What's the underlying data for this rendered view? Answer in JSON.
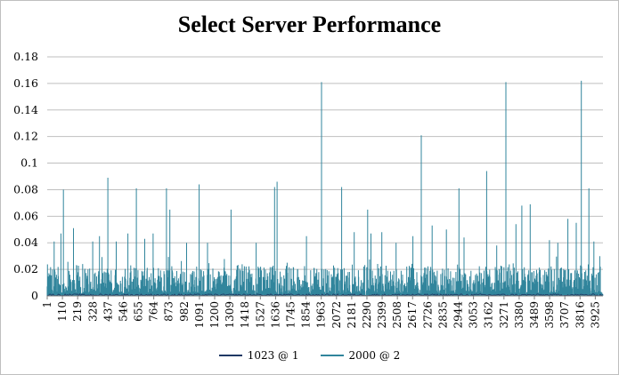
{
  "chart_data": {
    "type": "line",
    "title": "Select Server Performance",
    "xlabel": "",
    "ylabel": "",
    "ylim": [
      0,
      0.18
    ],
    "yticks": [
      "0",
      "0.02",
      "0.04",
      "0.06",
      "0.08",
      "0.1",
      "0.12",
      "0.14",
      "0.16",
      "0.18"
    ],
    "x_range": [
      1,
      3980
    ],
    "xticks": [
      "1",
      "110",
      "219",
      "328",
      "437",
      "546",
      "655",
      "764",
      "873",
      "982",
      "1091",
      "1200",
      "1309",
      "1418",
      "1527",
      "1636",
      "1745",
      "1854",
      "1963",
      "2072",
      "2181",
      "2290",
      "2399",
      "2508",
      "2617",
      "2726",
      "2835",
      "2944",
      "3053",
      "3162",
      "3271",
      "3380",
      "3489",
      "3598",
      "3707",
      "3816",
      "3925"
    ],
    "grid": true,
    "legend_position": "bottom",
    "series": [
      {
        "name": "1023 @ 1",
        "color": "#1f3864",
        "values_summary": "near-zero baseline, mostly hidden beneath second series"
      },
      {
        "name": "2000 @ 2",
        "color": "#31859c",
        "baseline_range": [
          0,
          0.02
        ],
        "spikes": [
          {
            "x": 55,
            "y": 0.041
          },
          {
            "x": 100,
            "y": 0.047
          },
          {
            "x": 120,
            "y": 0.08
          },
          {
            "x": 190,
            "y": 0.051
          },
          {
            "x": 260,
            "y": 0.024
          },
          {
            "x": 330,
            "y": 0.041
          },
          {
            "x": 380,
            "y": 0.045
          },
          {
            "x": 440,
            "y": 0.089
          },
          {
            "x": 500,
            "y": 0.041
          },
          {
            "x": 580,
            "y": 0.047
          },
          {
            "x": 640,
            "y": 0.081
          },
          {
            "x": 700,
            "y": 0.043
          },
          {
            "x": 760,
            "y": 0.047
          },
          {
            "x": 860,
            "y": 0.081
          },
          {
            "x": 880,
            "y": 0.065
          },
          {
            "x": 1000,
            "y": 0.04
          },
          {
            "x": 1090,
            "y": 0.084
          },
          {
            "x": 1150,
            "y": 0.04
          },
          {
            "x": 1320,
            "y": 0.065
          },
          {
            "x": 1500,
            "y": 0.04
          },
          {
            "x": 1630,
            "y": 0.082
          },
          {
            "x": 1650,
            "y": 0.086
          },
          {
            "x": 1720,
            "y": 0.025
          },
          {
            "x": 1860,
            "y": 0.045
          },
          {
            "x": 1970,
            "y": 0.161
          },
          {
            "x": 2110,
            "y": 0.082
          },
          {
            "x": 2200,
            "y": 0.048
          },
          {
            "x": 2300,
            "y": 0.065
          },
          {
            "x": 2320,
            "y": 0.047
          },
          {
            "x": 2400,
            "y": 0.048
          },
          {
            "x": 2500,
            "y": 0.04
          },
          {
            "x": 2620,
            "y": 0.045
          },
          {
            "x": 2680,
            "y": 0.121
          },
          {
            "x": 2760,
            "y": 0.053
          },
          {
            "x": 2860,
            "y": 0.05
          },
          {
            "x": 2950,
            "y": 0.081
          },
          {
            "x": 2990,
            "y": 0.044
          },
          {
            "x": 3150,
            "y": 0.094
          },
          {
            "x": 3220,
            "y": 0.038
          },
          {
            "x": 3290,
            "y": 0.161
          },
          {
            "x": 3360,
            "y": 0.054
          },
          {
            "x": 3400,
            "y": 0.068
          },
          {
            "x": 3460,
            "y": 0.069
          },
          {
            "x": 3600,
            "y": 0.042
          },
          {
            "x": 3660,
            "y": 0.04
          },
          {
            "x": 3730,
            "y": 0.058
          },
          {
            "x": 3790,
            "y": 0.055
          },
          {
            "x": 3830,
            "y": 0.162
          },
          {
            "x": 3880,
            "y": 0.081
          },
          {
            "x": 3920,
            "y": 0.041
          },
          {
            "x": 3960,
            "y": 0.03
          }
        ]
      }
    ]
  }
}
